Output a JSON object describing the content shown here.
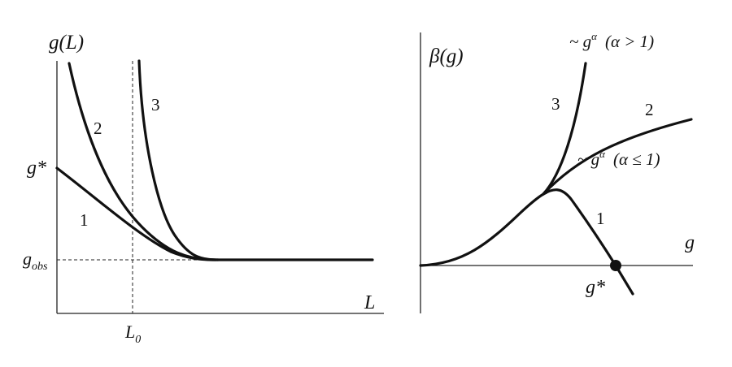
{
  "left_panel": {
    "y_label": "g(L)",
    "x_label": "L",
    "x_marker": {
      "base": "L",
      "sub": "0"
    },
    "fixed_point": "g*",
    "observed": {
      "base": "g",
      "sub": "obs"
    },
    "curves": [
      "1",
      "2",
      "3"
    ]
  },
  "right_panel": {
    "y_label": "β(g)",
    "x_label": "g",
    "fixed_point": "g*",
    "curves": [
      "1",
      "2",
      "3"
    ],
    "asymptotes": [
      {
        "prefix": "~ g",
        "sup": "α",
        "condition": "(α > 1)"
      },
      {
        "prefix": "~ g",
        "sup": "α",
        "condition": "(α ≤ 1)"
      }
    ]
  }
}
